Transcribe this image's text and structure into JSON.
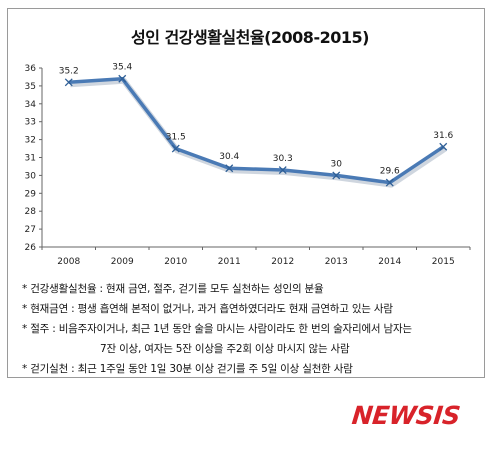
{
  "chart_data": {
    "type": "line",
    "title": "성인 건강생활실천율(2008-2015)",
    "categories": [
      "2008",
      "2009",
      "2010",
      "2011",
      "2012",
      "2013",
      "2014",
      "2015"
    ],
    "series": [
      {
        "values": [
          35.2,
          35.4,
          31.5,
          30.4,
          30.3,
          30,
          29.6,
          31.6
        ]
      }
    ],
    "data_labels": [
      "35.2",
      "35.4",
      "31.5",
      "30.4",
      "30.3",
      "30",
      "29.6",
      "31.6"
    ],
    "y_ticks": [
      "26",
      "27",
      "28",
      "29",
      "30",
      "31",
      "32",
      "33",
      "34",
      "35",
      "36"
    ],
    "ylim": [
      26,
      36
    ],
    "grid": false,
    "legend": "none",
    "xlabel": "",
    "ylabel": "",
    "line_color": "#4a7ab5"
  },
  "notes": [
    "* 건강생활실천율 : 현재 금연, 절주, 걷기를 모두 실천하는 성인의 분율",
    "* 현재금연 : 평생 흡연해 본적이 없거나, 과거 흡연하였더라도 현재 금연하고 있는 사람",
    "* 절주 : 비음주자이거나, 최근 1년 동안 술을 마시는 사람이라도 한 번의 술자리에서 남자는",
    "7잔 이상, 여자는 5잔 이상을 주2회 이상 마시지 않는 사람",
    "* 걷기실천 : 최근 1주일 동안 1일 30분 이상 걷기를 주 5일 이상 실천한 사람"
  ],
  "logo": {
    "text": "NEWSIS",
    "color": "#d8232a"
  }
}
